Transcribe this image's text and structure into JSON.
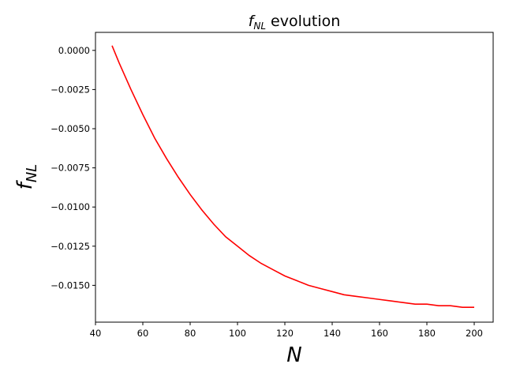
{
  "chart_data": {
    "type": "line",
    "title": "f_NL evolution",
    "title_parts": {
      "symbol": "f",
      "subscript": "NL",
      "rest": " evolution"
    },
    "xlabel": "N",
    "ylabel": "f_NL",
    "ylabel_parts": {
      "symbol": "f",
      "subscript": "NL"
    },
    "xlim": [
      40,
      208
    ],
    "ylim": [
      -0.01735,
      0.00115
    ],
    "xticks": [
      40,
      60,
      80,
      100,
      120,
      140,
      160,
      180,
      200
    ],
    "xtick_labels": [
      "40",
      "60",
      "80",
      "100",
      "120",
      "140",
      "160",
      "180",
      "200"
    ],
    "yticks": [
      0.0,
      -0.0025,
      -0.005,
      -0.0075,
      -0.01,
      -0.0125,
      -0.015
    ],
    "ytick_labels": [
      "0.0000",
      "−0.0025",
      "−0.0050",
      "−0.0075",
      "−0.0100",
      "−0.0125",
      "−0.0150"
    ],
    "grid": false,
    "series": [
      {
        "color": "#ff0000",
        "x": [
          47,
          50,
          55,
          60,
          65,
          70,
          75,
          80,
          85,
          90,
          95,
          100,
          105,
          110,
          115,
          120,
          125,
          130,
          135,
          140,
          145,
          150,
          155,
          160,
          165,
          170,
          175,
          180,
          185,
          190,
          195,
          200
        ],
        "y": [
          0.0003,
          -0.0008,
          -0.0025,
          -0.0041,
          -0.0056,
          -0.0069,
          -0.0081,
          -0.0092,
          -0.0102,
          -0.0111,
          -0.0119,
          -0.0125,
          -0.0131,
          -0.0136,
          -0.014,
          -0.0144,
          -0.0147,
          -0.015,
          -0.0152,
          -0.0154,
          -0.0156,
          -0.0157,
          -0.0158,
          -0.0159,
          -0.016,
          -0.0161,
          -0.0162,
          -0.0162,
          -0.0163,
          -0.0163,
          -0.0164,
          -0.0164
        ]
      }
    ]
  }
}
